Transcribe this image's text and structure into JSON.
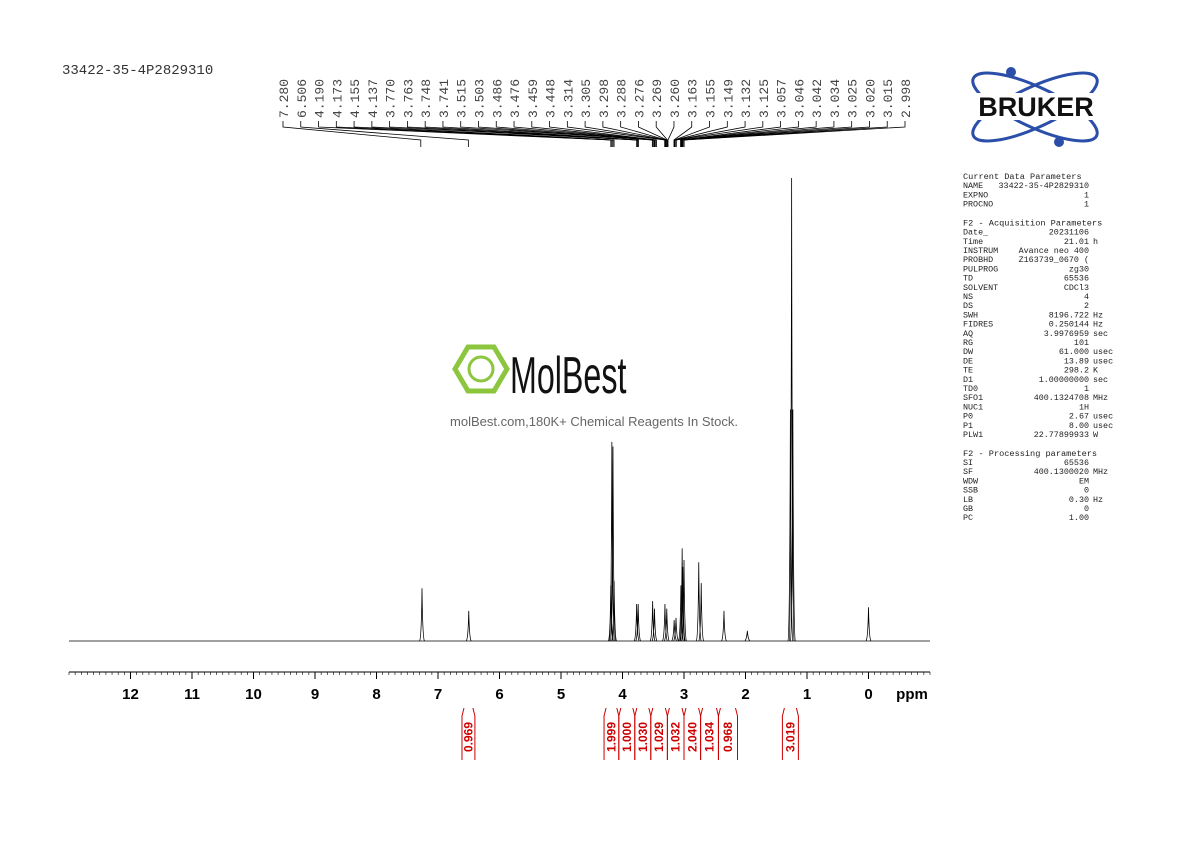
{
  "sample_name": "33422-35-4P2829310",
  "watermark": {
    "brand": "MolBest",
    "tagline": "molBest.com,180K+ Chemical Reagents In Stock."
  },
  "logo": "BRUKER",
  "chart_data": {
    "type": "nmr",
    "x_label": "ppm",
    "xlim": [
      13,
      -1
    ],
    "xticks": [
      12,
      11,
      10,
      9,
      8,
      7,
      6,
      5,
      4,
      3,
      2,
      1,
      0
    ],
    "ylim": [
      0,
      100
    ],
    "color": "#000000",
    "peaks": {
      "x": [
        7.26,
        6.5,
        4.19,
        4.173,
        4.155,
        4.137,
        3.77,
        3.745,
        3.51,
        3.48,
        3.31,
        3.28,
        3.16,
        3.13,
        3.05,
        3.03,
        3.02,
        3.0,
        2.76,
        2.72,
        2.35,
        1.97,
        1.27,
        1.25,
        1.23,
        0.0
      ],
      "values": [
        11.4,
        6.5,
        12,
        43,
        42,
        13,
        8,
        8,
        8.6,
        7,
        8,
        7,
        4.5,
        5,
        12,
        20,
        16,
        17.5,
        17,
        12.5,
        6.5,
        2.2,
        50,
        100,
        50,
        7.3
      ]
    },
    "peak_labels": [
      {
        "value": 7.28,
        "label": "7.280"
      },
      6.506,
      {
        "value": 4.19,
        "label": "4.190"
      },
      4.173,
      4.155,
      4.137,
      {
        "value": 3.77,
        "label": "3.770"
      },
      3.763,
      3.748,
      3.741,
      3.515,
      3.503,
      3.486,
      3.476,
      3.459,
      3.448,
      3.314,
      3.305,
      3.298,
      3.288,
      3.276,
      3.269,
      {
        "value": 3.26,
        "label": "3.260"
      },
      3.163,
      3.155,
      3.149,
      3.132,
      3.125,
      3.057,
      3.046,
      3.042,
      3.034,
      3.025,
      {
        "value": 3.02,
        "label": "3.020"
      },
      3.015,
      2.998
    ],
    "integrals": {
      "color": "#cc0000",
      "ranges": [
        [
          6.61,
          6.4
        ],
        [
          4.3,
          4.06
        ],
        [
          4.06,
          3.8
        ],
        [
          3.8,
          3.54
        ],
        [
          3.54,
          3.27
        ],
        [
          3.27,
          3.0
        ],
        [
          3.0,
          2.73
        ],
        [
          2.73,
          2.44
        ],
        [
          2.44,
          2.13
        ],
        [
          1.4,
          1.14
        ]
      ],
      "values": [
        0.969,
        1.999,
        1,
        1.03,
        1.029,
        1.032,
        2.04,
        1.034,
        0.968,
        3.019
      ],
      "value_labels": [
        "0.969",
        "1.999",
        "1.000",
        "1.030",
        "1.029",
        "1.032",
        "2.040",
        "1.034",
        "0.968",
        "3.019"
      ]
    }
  },
  "parameters": [
    {
      "title": "Current Data Parameters",
      "rows": [
        [
          "NAME",
          "33422-35-4P2829310"
        ],
        [
          "EXPNO",
          "1"
        ],
        [
          "PROCNO",
          "1"
        ]
      ]
    },
    {
      "title": "F2 - Acquisition Parameters",
      "rows": [
        [
          "Date_",
          "20231106"
        ],
        [
          "Time",
          "21.01",
          "h"
        ],
        [
          "INSTRUM",
          "Avance neo 400"
        ],
        [
          "PROBHD",
          "Z163739_0670 ("
        ],
        [
          "PULPROG",
          "zg30"
        ],
        [
          "TD",
          "65536"
        ],
        [
          "SOLVENT",
          "CDCl3"
        ],
        [
          "NS",
          "4"
        ],
        [
          "DS",
          "2"
        ],
        [
          "SWH",
          "8196.722",
          "Hz"
        ],
        [
          "FIDRES",
          "0.250144",
          "Hz"
        ],
        [
          "AQ",
          "3.9976959",
          "sec"
        ],
        [
          "RG",
          "101"
        ],
        [
          "DW",
          "61.000",
          "usec"
        ],
        [
          "DE",
          "13.89",
          "usec"
        ],
        [
          "TE",
          "298.2",
          "K"
        ],
        [
          "D1",
          "1.00000000",
          "sec"
        ],
        [
          "TD0",
          "1"
        ],
        [
          "SFO1",
          "400.1324708",
          "MHz"
        ],
        [
          "NUC1",
          "1H"
        ],
        [
          "P0",
          "2.67",
          "usec"
        ],
        [
          "P1",
          "8.00",
          "usec"
        ],
        [
          "PLW1",
          "22.77899933",
          "W"
        ]
      ]
    },
    {
      "title": "F2 - Processing parameters",
      "rows": [
        [
          "SI",
          "65536"
        ],
        [
          "SF",
          "400.1300020",
          "MHz"
        ],
        [
          "WDW",
          "EM"
        ],
        [
          "SSB",
          "0"
        ],
        [
          "LB",
          "0.30",
          "Hz"
        ],
        [
          "GB",
          "0"
        ],
        [
          "PC",
          "1.00"
        ]
      ]
    }
  ]
}
